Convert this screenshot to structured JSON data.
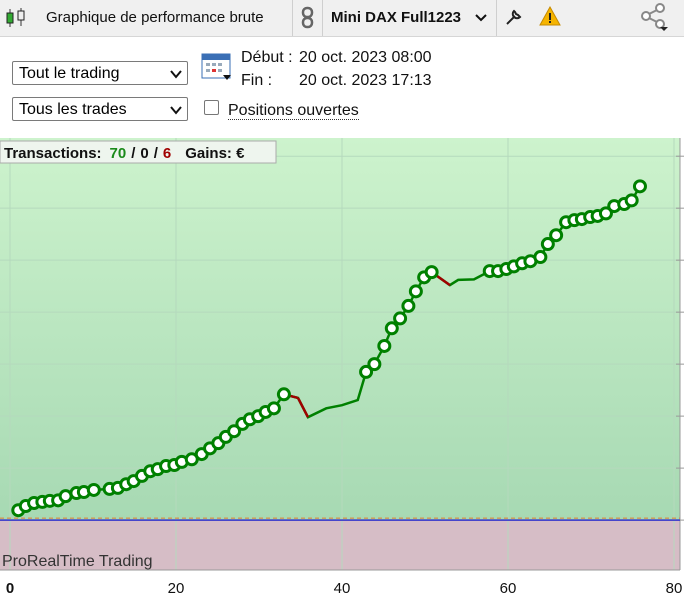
{
  "toolbar": {
    "title": "Graphique de performance brute",
    "instrument": "Mini DAX Full1223"
  },
  "controls": {
    "scope": "Tout le trading",
    "trades": "Tous les trades",
    "start_label": "Début :",
    "start": "20 oct. 2023 08:00",
    "end_label": "Fin :",
    "end": "20 oct. 2023 17:13",
    "open_positions": "Positions ouvertes"
  },
  "chart_data": {
    "type": "line",
    "stats": {
      "label": "Transactions:",
      "wins": 70,
      "separator": "/",
      "neutral": 0,
      "losses": 6,
      "gains_label": "Gains: €"
    },
    "watermark": "ProRealTime Trading",
    "xlim": [
      0,
      80
    ],
    "xticks": [
      0,
      20,
      40,
      60,
      80
    ],
    "ylim": [
      -0.96,
      7.35
    ],
    "yticks": [
      0,
      1,
      2,
      3,
      4,
      5,
      6,
      7
    ],
    "grid": true,
    "line": {
      "color": "#008000",
      "loss_color": "#a00000",
      "x": [
        1.0,
        1.9,
        2.9,
        3.9,
        4.8,
        5.8,
        6.7,
        8.0,
        8.9,
        10.1,
        12.0,
        13.0,
        14.0,
        14.9,
        15.9,
        16.9,
        17.8,
        18.8,
        19.8,
        20.7,
        21.9,
        23.1,
        24.1,
        25.1,
        26.0,
        27.0,
        28.0,
        28.9,
        29.9,
        30.8,
        31.8,
        33.0,
        34.7,
        35.9,
        38.1,
        40.0,
        41.9,
        42.9,
        43.9,
        45.1,
        46.0,
        47.0,
        48.0,
        48.9,
        49.9,
        50.8,
        53.0,
        54.0,
        55.9,
        57.8,
        58.8,
        59.8,
        60.7,
        61.7,
        62.7,
        63.9,
        64.8,
        65.8,
        67.0,
        68.0,
        68.9,
        69.9,
        70.8,
        71.8,
        72.8,
        74.0,
        74.9,
        75.9
      ],
      "values": [
        0.19,
        0.27,
        0.33,
        0.35,
        0.37,
        0.38,
        0.46,
        0.52,
        0.54,
        0.58,
        0.6,
        0.62,
        0.69,
        0.75,
        0.85,
        0.94,
        0.98,
        1.04,
        1.06,
        1.12,
        1.17,
        1.27,
        1.38,
        1.48,
        1.6,
        1.71,
        1.85,
        1.94,
        2.0,
        2.08,
        2.15,
        2.42,
        2.35,
        1.98,
        2.15,
        2.21,
        2.31,
        2.85,
        3.0,
        3.35,
        3.69,
        3.88,
        4.12,
        4.4,
        4.67,
        4.77,
        4.52,
        4.62,
        4.63,
        4.79,
        4.79,
        4.83,
        4.88,
        4.94,
        4.98,
        5.06,
        5.31,
        5.48,
        5.73,
        5.77,
        5.79,
        5.83,
        5.85,
        5.9,
        6.04,
        6.08,
        6.15,
        6.42
      ]
    },
    "points": {
      "color": "#008000",
      "x": [
        1.0,
        1.9,
        2.9,
        3.9,
        4.8,
        5.8,
        6.7,
        8.0,
        8.9,
        10.1,
        12.0,
        13.0,
        14.0,
        14.9,
        15.9,
        16.9,
        17.8,
        18.8,
        19.8,
        20.7,
        21.9,
        23.1,
        24.1,
        25.1,
        26.0,
        27.0,
        28.0,
        28.9,
        29.9,
        30.8,
        31.8,
        33.0,
        42.9,
        43.9,
        45.1,
        46.0,
        47.0,
        48.0,
        48.9,
        49.9,
        50.8,
        57.8,
        58.8,
        59.8,
        60.7,
        61.7,
        62.7,
        63.9,
        64.8,
        65.8,
        67.0,
        68.0,
        68.9,
        69.9,
        70.8,
        71.8,
        72.8,
        74.0,
        74.9,
        75.9
      ],
      "values": [
        0.19,
        0.27,
        0.33,
        0.35,
        0.37,
        0.38,
        0.46,
        0.52,
        0.54,
        0.58,
        0.6,
        0.62,
        0.69,
        0.75,
        0.85,
        0.94,
        0.98,
        1.04,
        1.06,
        1.12,
        1.17,
        1.27,
        1.38,
        1.48,
        1.6,
        1.71,
        1.85,
        1.94,
        2.0,
        2.08,
        2.15,
        2.42,
        2.85,
        3.0,
        3.35,
        3.69,
        3.88,
        4.12,
        4.4,
        4.67,
        4.77,
        4.79,
        4.79,
        4.83,
        4.88,
        4.94,
        4.98,
        5.06,
        5.31,
        5.48,
        5.73,
        5.77,
        5.79,
        5.83,
        5.85,
        5.9,
        6.04,
        6.08,
        6.15,
        6.42
      ]
    }
  }
}
